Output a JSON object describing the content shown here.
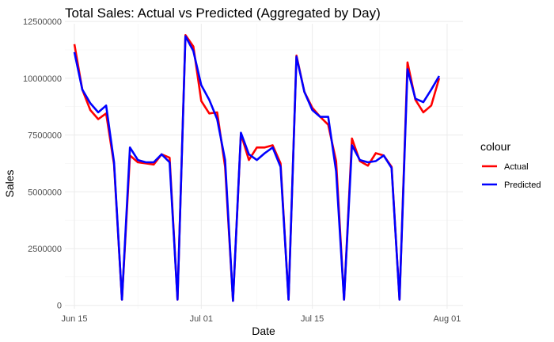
{
  "chart_data": {
    "type": "line",
    "title": "Total Sales: Actual vs Predicted (Aggregated by Day)",
    "xlabel": "Date",
    "ylabel": "Sales",
    "x_start": "2024-06-15",
    "x_ticks": [
      {
        "label": "Jun 15",
        "day": 0
      },
      {
        "label": "Jul 01",
        "day": 16
      },
      {
        "label": "Jul 15",
        "day": 30
      },
      {
        "label": "Aug 01",
        "day": 47
      }
    ],
    "xlim": [
      -1.2,
      49
    ],
    "y_ticks": [
      0,
      2500000,
      5000000,
      7500000,
      10000000,
      12500000
    ],
    "y_tick_labels": [
      "0",
      "2500000",
      "5000000",
      "7500000",
      "10000000",
      "12500000"
    ],
    "ylim": [
      -150000,
      12400000
    ],
    "legend": {
      "title": "colour",
      "position": "right",
      "entries": [
        {
          "name": "Actual",
          "color": "#ff0000"
        },
        {
          "name": "Predicted",
          "color": "#0000ff"
        }
      ]
    },
    "series": [
      {
        "name": "Actual",
        "color": "#ff0000",
        "x": [
          0,
          1,
          2,
          3,
          4,
          5,
          6,
          7,
          8,
          9,
          10,
          11,
          12,
          13,
          14,
          15,
          16,
          17,
          18,
          19,
          20,
          21,
          22,
          23,
          24,
          25,
          26,
          27,
          28,
          29,
          30,
          31,
          32,
          33,
          34,
          35,
          36,
          37,
          38,
          39,
          40,
          41,
          42,
          43,
          44,
          45,
          46
        ],
        "values": [
          11500000,
          9500000,
          8600000,
          8200000,
          8450000,
          6200000,
          250000,
          6600000,
          6300000,
          6250000,
          6200000,
          6650000,
          6500000,
          250000,
          11900000,
          11400000,
          9000000,
          8450000,
          8500000,
          6100000,
          200000,
          7550000,
          6400000,
          6950000,
          6950000,
          7050000,
          6250000,
          250000,
          11000000,
          9400000,
          8700000,
          8300000,
          7950000,
          6350000,
          250000,
          7350000,
          6350000,
          6150000,
          6700000,
          6600000,
          6100000,
          250000,
          10700000,
          9050000,
          8500000,
          8800000,
          10000000
        ]
      },
      {
        "name": "Predicted",
        "color": "#0000ff",
        "x": [
          0,
          1,
          2,
          3,
          4,
          5,
          6,
          7,
          8,
          9,
          10,
          11,
          12,
          13,
          14,
          15,
          16,
          17,
          18,
          19,
          20,
          21,
          22,
          23,
          24,
          25,
          26,
          27,
          28,
          29,
          30,
          31,
          32,
          33,
          34,
          35,
          36,
          37,
          38,
          39,
          40,
          41,
          42,
          43,
          44,
          45,
          46
        ],
        "values": [
          11150000,
          9500000,
          8900000,
          8500000,
          8800000,
          6300000,
          250000,
          6950000,
          6400000,
          6300000,
          6300000,
          6650000,
          6300000,
          250000,
          11850000,
          11200000,
          9700000,
          9050000,
          8200000,
          6400000,
          200000,
          7600000,
          6650000,
          6400000,
          6700000,
          6950000,
          6100000,
          250000,
          10950000,
          9400000,
          8600000,
          8300000,
          8300000,
          5900000,
          250000,
          7050000,
          6400000,
          6300000,
          6350000,
          6600000,
          6050000,
          250000,
          10400000,
          9100000,
          8950000,
          9500000,
          10100000
        ]
      }
    ]
  }
}
